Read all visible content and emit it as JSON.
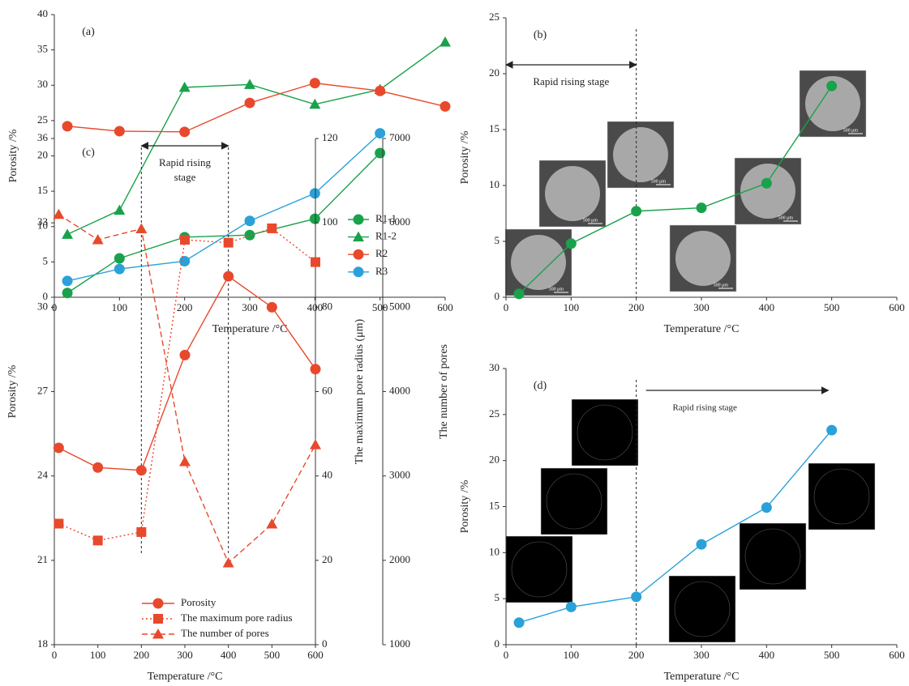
{
  "chart_data": [
    {
      "type": "line",
      "panel_label": "(a)",
      "x_label": "Temperature /°C",
      "y_label": "Porosity /%",
      "x": [
        20,
        100,
        200,
        300,
        400,
        500,
        600
      ],
      "xlim": [
        0,
        600
      ],
      "xticks": [
        0,
        100,
        200,
        300,
        400,
        500,
        600
      ],
      "ylim": [
        0,
        40
      ],
      "yticks": [
        0,
        5,
        10,
        15,
        20,
        25,
        30,
        35,
        40
      ],
      "legend": "lower right",
      "series": [
        {
          "name": "R1-1",
          "color": "#19a24b",
          "marker": "circle",
          "values": [
            0.6,
            5.5,
            8.5,
            8.8,
            11.1,
            20.4,
            null
          ]
        },
        {
          "name": "R1-2",
          "color": "#19a24b",
          "marker": "triangle",
          "values": [
            8.9,
            12.3,
            29.7,
            30.1,
            27.3,
            29.4,
            36.1
          ]
        },
        {
          "name": "R2",
          "color": "#e8492c",
          "marker": "circle",
          "values": [
            24.2,
            23.5,
            23.4,
            27.5,
            30.3,
            29.2,
            27.0
          ]
        },
        {
          "name": "R3",
          "color": "#2aa1d9",
          "marker": "circle",
          "values": [
            2.3,
            4.0,
            5.1,
            10.8,
            14.7,
            23.2,
            null
          ]
        }
      ]
    },
    {
      "type": "line",
      "panel_label": "(b)",
      "x_label": "Temperature /°C",
      "y_label": "Porosity /%",
      "x": [
        20,
        100,
        200,
        300,
        400,
        500
      ],
      "xlim": [
        0,
        600
      ],
      "xticks": [
        0,
        100,
        200,
        300,
        400,
        500,
        600
      ],
      "ylim": [
        0,
        25
      ],
      "yticks": [
        0,
        5,
        10,
        15,
        20,
        25
      ],
      "series": [
        {
          "color": "#19a24b",
          "marker": "circle",
          "values": [
            0.3,
            4.8,
            7.7,
            8.0,
            10.2,
            18.9
          ]
        }
      ],
      "vlines": [
        200
      ],
      "stage_span": [
        0,
        200
      ],
      "annotation": [
        "Rapid rising stage"
      ],
      "image_scale_label": "500 μm"
    },
    {
      "type": "line",
      "panel_label": "(c)",
      "x_label": "Temperature /°C",
      "y_label": "Porosity /%",
      "y2_label": "The maximum pore radius (μm)",
      "y3_label": "The number of pores",
      "x": [
        10,
        100,
        200,
        300,
        400,
        500,
        600
      ],
      "xlim": [
        0,
        600
      ],
      "xticks": [
        0,
        100,
        200,
        300,
        400,
        500,
        600
      ],
      "ylim": [
        18,
        36
      ],
      "yticks": [
        18,
        21,
        24,
        27,
        30,
        33,
        36
      ],
      "y2lim": [
        0,
        120
      ],
      "y2ticks": [
        0,
        20,
        40,
        60,
        80,
        100,
        120
      ],
      "y3lim": [
        1000,
        7000
      ],
      "y3ticks": [
        1000,
        2000,
        3000,
        4000,
        5000,
        6000,
        7000
      ],
      "legend": "lower center",
      "series": [
        {
          "name": "Porosity",
          "color": "#e8492c",
          "marker": "circle",
          "line_style": "solid",
          "values": [
            25.0,
            24.3,
            24.2,
            28.3,
            31.1,
            30.0,
            27.8
          ]
        },
        {
          "name": "The maximum pore radius",
          "color": "#e8492c",
          "marker": "square",
          "line_style": "dotted",
          "axis": "y2",
          "values": [
            28.7,
            24.7,
            26.7,
            96,
            95.3,
            98.7,
            90.7
          ]
        },
        {
          "name": "The number of pores",
          "color": "#e8492c",
          "marker": "triangle",
          "line_style": "dashed",
          "axis": "y3",
          "values": [
            6100,
            5800,
            5930,
            3170,
            1970,
            2430,
            3370
          ]
        }
      ],
      "vlines": [
        200,
        400
      ],
      "stage_span": [
        200,
        400
      ],
      "annotation": [
        "Rapid rising",
        "stage"
      ]
    },
    {
      "type": "line",
      "panel_label": "(d)",
      "x_label": "Temperature /°C",
      "y_label": "Porosity /%",
      "x": [
        20,
        100,
        200,
        300,
        400,
        500
      ],
      "xlim": [
        0,
        600
      ],
      "xticks": [
        0,
        100,
        200,
        300,
        400,
        500,
        600
      ],
      "ylim": [
        0,
        30
      ],
      "yticks": [
        0,
        5,
        10,
        15,
        20,
        25,
        30
      ],
      "series": [
        {
          "color": "#2aa1d9",
          "marker": "circle",
          "values": [
            2.4,
            4.1,
            5.2,
            10.9,
            14.9,
            23.3
          ]
        }
      ],
      "vlines": [
        200
      ],
      "stage_span": [
        215,
        495
      ],
      "annotation": [
        "Rapid rising stage"
      ]
    }
  ]
}
